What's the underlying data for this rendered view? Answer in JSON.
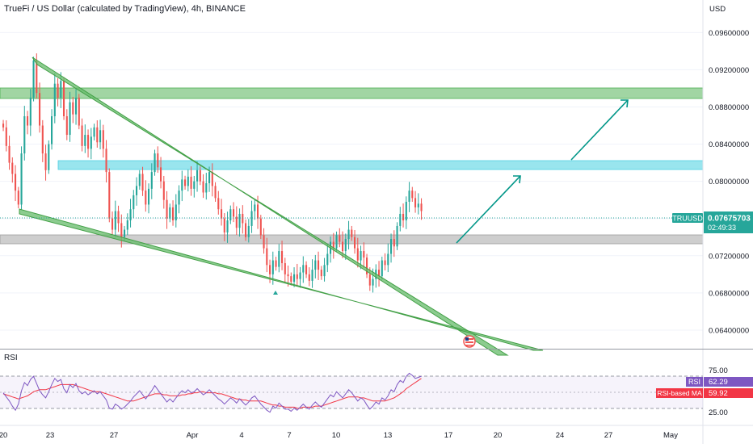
{
  "header": {
    "title": "TrueFi / US Dollar (calculated by TradingView), 4h, BINANCE",
    "currency": "USD"
  },
  "chart_data": [
    {
      "type": "candlestick",
      "symbol": "TRUUSD",
      "price_label": "0.07675703",
      "countdown": "02:49:33",
      "ylim": [
        0.062,
        0.0995
      ],
      "y_ticks": [
        "0.09600000",
        "0.09200000",
        "0.08800000",
        "0.08400000",
        "0.08000000",
        "0.07600000",
        "0.07200000",
        "0.06800000",
        "0.06400000"
      ],
      "x_ticks": [
        "20",
        "23",
        "27",
        "Apr",
        "4",
        "7",
        "10",
        "13",
        "17",
        "20",
        "24",
        "27",
        "May"
      ],
      "candles": [
        [
          0.0862,
          0.0858
        ],
        [
          0.0858,
          0.0838
        ],
        [
          0.0838,
          0.082
        ],
        [
          0.082,
          0.0808
        ],
        [
          0.0808,
          0.079
        ],
        [
          0.079,
          0.0775
        ],
        [
          0.0775,
          0.083
        ],
        [
          0.083,
          0.087
        ],
        [
          0.087,
          0.086
        ],
        [
          0.086,
          0.089
        ],
        [
          0.089,
          0.093
        ],
        [
          0.093,
          0.0895
        ],
        [
          0.0895,
          0.086
        ],
        [
          0.086,
          0.083
        ],
        [
          0.083,
          0.0812
        ],
        [
          0.0812,
          0.084
        ],
        [
          0.084,
          0.087
        ],
        [
          0.087,
          0.0905
        ],
        [
          0.0905,
          0.089
        ],
        [
          0.089,
          0.0908
        ],
        [
          0.0908,
          0.087
        ],
        [
          0.087,
          0.085
        ],
        [
          0.085,
          0.0885
        ],
        [
          0.0885,
          0.0872
        ],
        [
          0.0872,
          0.089
        ],
        [
          0.089,
          0.086
        ],
        [
          0.086,
          0.0838
        ],
        [
          0.0838,
          0.085
        ],
        [
          0.085,
          0.0835
        ],
        [
          0.0835,
          0.0848
        ],
        [
          0.0848,
          0.0858
        ],
        [
          0.0858,
          0.0842
        ],
        [
          0.0842,
          0.0855
        ],
        [
          0.0855,
          0.0835
        ],
        [
          0.0835,
          0.081
        ],
        [
          0.081,
          0.076
        ],
        [
          0.076,
          0.0748
        ],
        [
          0.0748,
          0.0768
        ],
        [
          0.0768,
          0.0755
        ],
        [
          0.0755,
          0.074
        ],
        [
          0.074,
          0.0748
        ],
        [
          0.0748,
          0.0758
        ],
        [
          0.0758,
          0.077
        ],
        [
          0.077,
          0.0785
        ],
        [
          0.0785,
          0.0795
        ],
        [
          0.0795,
          0.0808
        ],
        [
          0.0808,
          0.079
        ],
        [
          0.079,
          0.0775
        ],
        [
          0.0775,
          0.0792
        ],
        [
          0.0792,
          0.081
        ],
        [
          0.081,
          0.083
        ],
        [
          0.083,
          0.0815
        ],
        [
          0.0815,
          0.08
        ],
        [
          0.08,
          0.078
        ],
        [
          0.078,
          0.076
        ],
        [
          0.076,
          0.0772
        ],
        [
          0.0772,
          0.0758
        ],
        [
          0.0758,
          0.0775
        ],
        [
          0.0775,
          0.079
        ],
        [
          0.079,
          0.0802
        ],
        [
          0.0802,
          0.0795
        ],
        [
          0.0795,
          0.0805
        ],
        [
          0.0805,
          0.0792
        ],
        [
          0.0792,
          0.08
        ],
        [
          0.08,
          0.0812
        ],
        [
          0.0812,
          0.08
        ],
        [
          0.08,
          0.0788
        ],
        [
          0.0788,
          0.0798
        ],
        [
          0.0798,
          0.081
        ],
        [
          0.081,
          0.0795
        ],
        [
          0.0795,
          0.0782
        ],
        [
          0.0782,
          0.077
        ],
        [
          0.077,
          0.076
        ],
        [
          0.076,
          0.0745
        ],
        [
          0.0745,
          0.0758
        ],
        [
          0.0758,
          0.077
        ],
        [
          0.077,
          0.0762
        ],
        [
          0.0762,
          0.075
        ],
        [
          0.075,
          0.0765
        ],
        [
          0.0765,
          0.0755
        ],
        [
          0.0755,
          0.074
        ],
        [
          0.074,
          0.0752
        ],
        [
          0.0752,
          0.0768
        ],
        [
          0.0768,
          0.0775
        ],
        [
          0.0775,
          0.076
        ],
        [
          0.076,
          0.0742
        ],
        [
          0.0742,
          0.0728
        ],
        [
          0.0728,
          0.071
        ],
        [
          0.071,
          0.07
        ],
        [
          0.07,
          0.0715
        ],
        [
          0.0715,
          0.0708
        ],
        [
          0.0708,
          0.0725
        ],
        [
          0.0725,
          0.0712
        ],
        [
          0.0712,
          0.07
        ],
        [
          0.07,
          0.0698
        ],
        [
          0.0698,
          0.0692
        ],
        [
          0.0692,
          0.07
        ],
        [
          0.07,
          0.0695
        ],
        [
          0.0695,
          0.0702
        ],
        [
          0.0702,
          0.071
        ],
        [
          0.071,
          0.07
        ],
        [
          0.07,
          0.0693
        ],
        [
          0.0693,
          0.0705
        ],
        [
          0.0705,
          0.0715
        ],
        [
          0.0715,
          0.0705
        ],
        [
          0.0705,
          0.0698
        ],
        [
          0.0698,
          0.071
        ],
        [
          0.071,
          0.0722
        ],
        [
          0.0722,
          0.0735
        ],
        [
          0.0735,
          0.0728
        ],
        [
          0.0728,
          0.0742
        ],
        [
          0.0742,
          0.0735
        ],
        [
          0.0735,
          0.0725
        ],
        [
          0.0725,
          0.0738
        ],
        [
          0.0738,
          0.0748
        ],
        [
          0.0748,
          0.074
        ],
        [
          0.074,
          0.0728
        ],
        [
          0.0728,
          0.0715
        ],
        [
          0.0715,
          0.0725
        ],
        [
          0.0725,
          0.0718
        ],
        [
          0.0718,
          0.07
        ],
        [
          0.07,
          0.0688
        ],
        [
          0.0688,
          0.0695
        ],
        [
          0.0695,
          0.0705
        ],
        [
          0.0705,
          0.0698
        ],
        [
          0.0698,
          0.0715
        ],
        [
          0.0715,
          0.071
        ],
        [
          0.071,
          0.0722
        ],
        [
          0.0722,
          0.0738
        ],
        [
          0.0738,
          0.073
        ],
        [
          0.073,
          0.0752
        ],
        [
          0.0752,
          0.0765
        ],
        [
          0.0765,
          0.0758
        ],
        [
          0.0758,
          0.0778
        ],
        [
          0.0778,
          0.079
        ],
        [
          0.079,
          0.0782
        ],
        [
          0.0782,
          0.0772
        ],
        [
          0.0772,
          0.0776
        ],
        [
          0.0776,
          0.0768
        ]
      ]
    },
    {
      "type": "line",
      "name": "RSI",
      "ylim": [
        15,
        85
      ],
      "y_ticks": [
        "75.00",
        "25.00"
      ],
      "bands": [
        70,
        50,
        30
      ],
      "series": [
        {
          "name": "RSI",
          "last_value": "62.29",
          "color": "#7e57c2",
          "values": [
            46,
            42,
            38,
            33,
            29,
            35,
            48,
            56,
            53,
            59,
            62,
            55,
            48,
            44,
            41,
            47,
            54,
            60,
            57,
            59,
            50,
            46,
            54,
            51,
            55,
            48,
            45,
            47,
            44,
            46,
            48,
            45,
            47,
            43,
            39,
            31,
            30,
            35,
            33,
            30,
            32,
            35,
            38,
            42,
            45,
            48,
            44,
            40,
            44,
            48,
            53,
            49,
            45,
            41,
            37,
            40,
            37,
            41,
            45,
            48,
            46,
            49,
            46,
            47,
            50,
            47,
            44,
            46,
            49,
            46,
            43,
            40,
            38,
            35,
            38,
            41,
            39,
            36,
            40,
            37,
            34,
            37,
            41,
            43,
            39,
            35,
            32,
            29,
            27,
            33,
            31,
            36,
            33,
            30,
            30,
            28,
            31,
            29,
            32,
            35,
            32,
            30,
            34,
            37,
            34,
            32,
            36,
            40,
            44,
            42,
            47,
            44,
            41,
            45,
            49,
            46,
            42,
            38,
            41,
            39,
            34,
            30,
            33,
            37,
            35,
            41,
            39,
            43,
            49,
            47,
            54,
            58,
            56,
            62,
            65,
            63,
            60,
            61,
            62
          ]
        },
        {
          "name": "RSI-based MA",
          "last_value": "59.92",
          "color": "#f23645",
          "values": [
            45,
            44,
            43,
            42,
            41,
            40,
            41,
            42,
            43,
            45,
            47,
            48,
            49,
            49,
            49,
            50,
            51,
            52,
            53,
            54,
            54,
            54,
            54,
            54,
            53,
            52,
            51,
            50,
            49,
            48,
            47,
            47,
            47,
            46,
            45,
            44,
            43,
            42,
            41,
            40,
            39,
            38,
            38,
            38,
            39,
            40,
            41,
            42,
            43,
            44,
            45,
            45,
            45,
            44,
            44,
            43,
            43,
            43,
            43,
            44,
            44,
            45,
            45,
            46,
            46,
            47,
            47,
            46,
            46,
            46,
            46,
            45,
            45,
            44,
            43,
            42,
            41,
            40,
            40,
            39,
            39,
            38,
            38,
            38,
            38,
            38,
            37,
            36,
            35,
            34,
            34,
            33,
            33,
            32,
            32,
            32,
            32,
            31,
            31,
            32,
            32,
            32,
            32,
            33,
            33,
            33,
            34,
            35,
            36,
            37,
            38,
            39,
            40,
            41,
            42,
            42,
            42,
            42,
            41,
            41,
            40,
            39,
            38,
            38,
            38,
            38,
            38,
            39,
            40,
            41,
            43,
            45,
            47,
            50,
            52,
            54,
            56,
            58,
            60
          ]
        }
      ]
    }
  ],
  "drawings": {
    "resistance_zone_upper": [
      0.0904,
      0.0915
    ],
    "resistance_zone_mid": [
      0.0822,
      0.0832
    ],
    "support_zone": [
      0.0737,
      0.0748
    ]
  },
  "colors": {
    "bull": "#26a69a",
    "bear": "#ef5350",
    "zone_green": "#81c784",
    "zone_blue": "#80deea",
    "zone_grey": "#bdbdbd",
    "price_badge": "#26a69a",
    "rsi_badge": "#7e57c2",
    "ma_badge": "#f23645"
  }
}
